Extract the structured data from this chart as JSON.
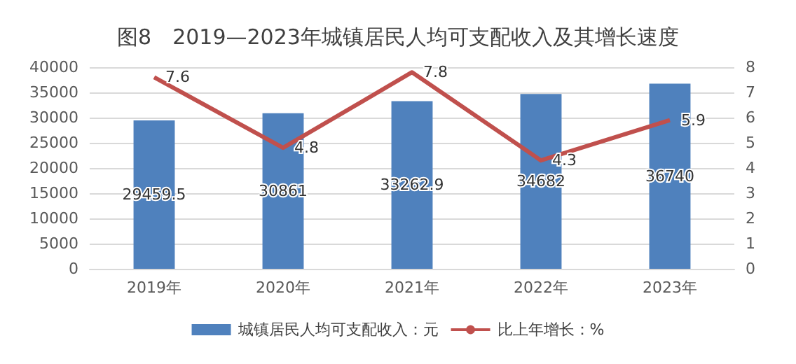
{
  "chart_data": {
    "type": "bar",
    "title": "图8　2019—2023年城镇居民人均可支配收入及其增长速度",
    "categories": [
      "2019年",
      "2020年",
      "2021年",
      "2022年",
      "2023年"
    ],
    "series": [
      {
        "name": "城镇居民人均可支配收入：元",
        "color": "#4f81bd",
        "values": [
          29459.5,
          30861,
          33262.9,
          34682,
          36740
        ]
      },
      {
        "name": "比上年增长：%",
        "type": "line",
        "axis": "y2",
        "color": "#c0504d",
        "values": [
          7.6,
          4.8,
          7.8,
          4.3,
          5.9
        ]
      }
    ],
    "ylim": [
      0,
      40000
    ],
    "yticks": [
      0,
      5000,
      10000,
      15000,
      20000,
      25000,
      30000,
      35000,
      40000
    ],
    "y2lim": [
      0,
      8
    ],
    "y2ticks": [
      0,
      1,
      2,
      3,
      4,
      5,
      6,
      7,
      8
    ],
    "grid": "y",
    "legend": "bottom",
    "data_labels": true,
    "marker": "none",
    "line_style": "solid"
  }
}
